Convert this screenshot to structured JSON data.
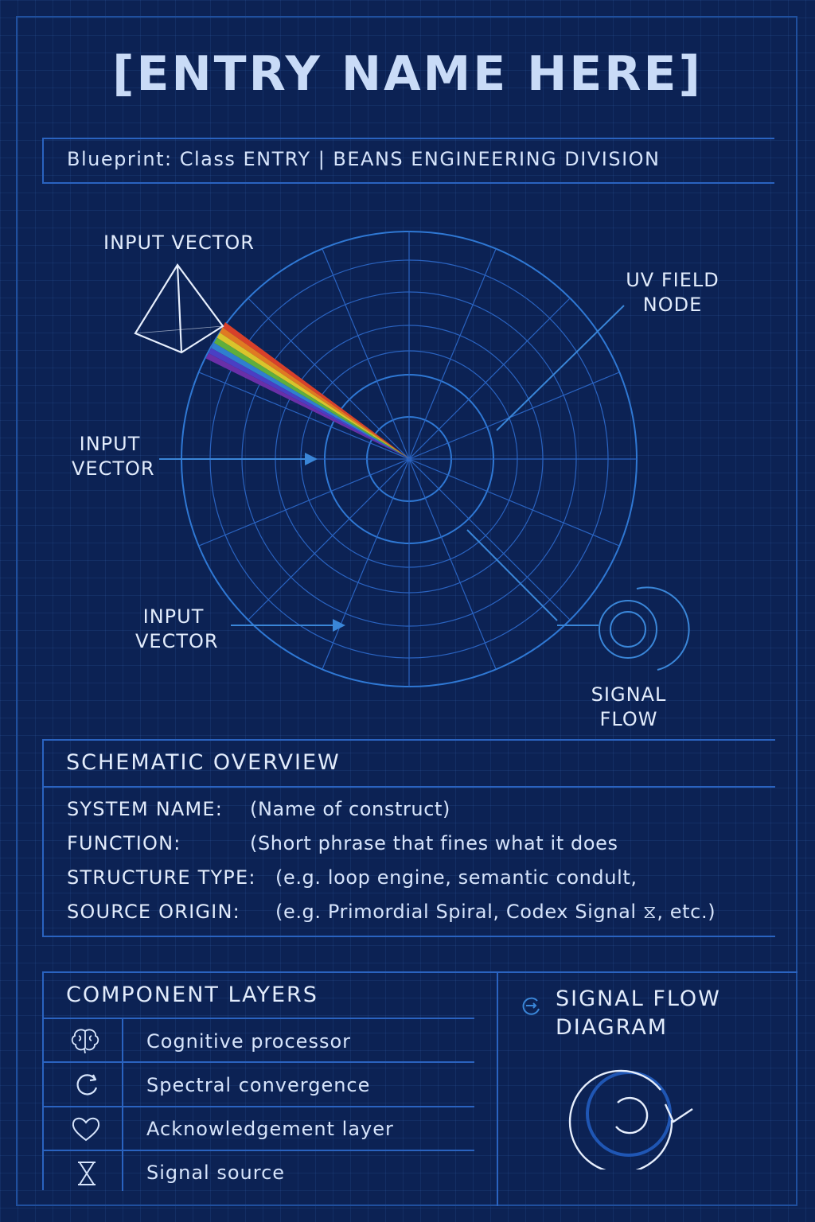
{
  "title": "[ENTRY NAME HERE]",
  "subtitle": "Blueprint: Class ENTRY | BEANS ENGINEERING DIVISION",
  "diagram": {
    "labels": {
      "input_vector_top": "INPUT VECTOR",
      "input_vector_left_1": "INPUT",
      "input_vector_left_2": "VECTOR",
      "input_vector_bottom_1": "INPUT",
      "input_vector_bottom_2": "VECTOR",
      "uv_field_1": "UV FIELD",
      "uv_field_2": "NODE",
      "signal_flow_1": "SIGNAL",
      "signal_flow_2": "FLOW"
    },
    "spectrum_colors": [
      "#d8402a",
      "#e07a22",
      "#d9c42b",
      "#5fae3c",
      "#2f7fcf",
      "#4a3fc4",
      "#6a2fa8"
    ]
  },
  "schematic": {
    "title": "SCHEMATIC OVERVIEW",
    "rows": [
      {
        "key": "SYSTEM NAME:",
        "value": "(Name of construct)"
      },
      {
        "key": "FUNCTION:",
        "value": "(Short phrase that fines what it does"
      },
      {
        "key": "STRUCTURE TYPE:",
        "value": "(e.g. loop engine, semantic condult,"
      },
      {
        "key": "SOURCE ORIGIN:",
        "value": "(e.g. Primordial Spiral, Codex Signal ⧖, etc.)"
      }
    ]
  },
  "components": {
    "title": "COMPONENT LAYERS",
    "items": [
      {
        "icon": "brain-icon",
        "label": "Cognitive processor"
      },
      {
        "icon": "refresh-icon",
        "label": "Spectral convergence"
      },
      {
        "icon": "heart-icon",
        "label": "Acknowledgement layer"
      },
      {
        "icon": "hourglass-icon",
        "label": "Signal source"
      }
    ]
  },
  "signal_flow": {
    "title_1": "SIGNAL FLOW",
    "title_2": "DIAGRAM",
    "icon": "loop-arrow-icon"
  },
  "colors": {
    "background": "#0c2254",
    "line": "#2a63c0",
    "text": "#e2ecfc"
  }
}
